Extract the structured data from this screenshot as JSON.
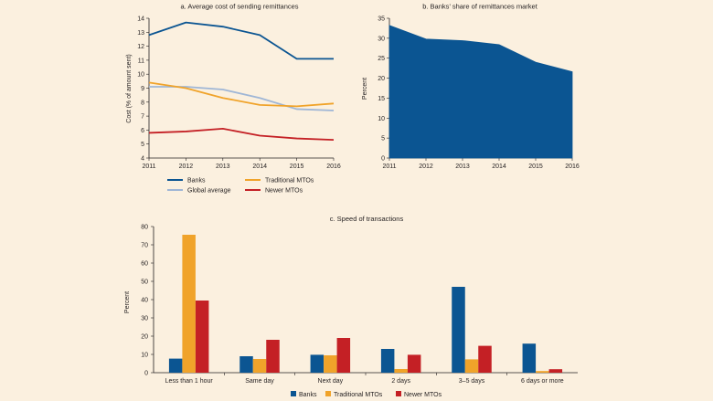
{
  "colors": {
    "background": "#fbf0df",
    "banks": "#0b5592",
    "traditional_mtos": "#f0a32a",
    "global_average": "#9fb6d6",
    "newer_mtos": "#c42025",
    "area": "#0b5592",
    "axis": "#231f20"
  },
  "chart_data": [
    {
      "type": "line",
      "title": "a. Average cost of sending remittances",
      "xlabel": "",
      "ylabel": "Cost (% of amount sent)",
      "x": [
        2011,
        2012,
        2013,
        2014,
        2015,
        2016
      ],
      "ylim": [
        4,
        14
      ],
      "yticks": [
        4,
        5,
        6,
        7,
        8,
        9,
        10,
        11,
        12,
        13,
        14
      ],
      "grid": false,
      "legend": "bottom",
      "series": [
        {
          "name": "Banks",
          "color": "#0b5592",
          "values": [
            12.8,
            13.7,
            13.4,
            12.8,
            11.1,
            11.1
          ]
        },
        {
          "name": "Traditional MTOs",
          "color": "#f0a32a",
          "values": [
            9.4,
            9.0,
            8.3,
            7.8,
            7.7,
            7.9
          ]
        },
        {
          "name": "Global average",
          "color": "#9fb6d6",
          "values": [
            9.1,
            9.1,
            8.9,
            8.3,
            7.5,
            7.4
          ]
        },
        {
          "name": "Newer MTOs",
          "color": "#c42025",
          "values": [
            5.8,
            5.9,
            6.1,
            5.6,
            5.4,
            5.3
          ]
        }
      ]
    },
    {
      "type": "area",
      "title": "b. Banks’ share of remittances market",
      "xlabel": "",
      "ylabel": "Percent",
      "x": [
        2011,
        2012,
        2013,
        2014,
        2015,
        2016
      ],
      "ylim": [
        0,
        35
      ],
      "yticks": [
        0,
        5,
        10,
        15,
        20,
        25,
        30,
        35
      ],
      "grid": false,
      "series": [
        {
          "name": "",
          "color": "#0b5592",
          "values": [
            33.2,
            29.8,
            29.4,
            28.4,
            24.0,
            21.6
          ]
        }
      ]
    },
    {
      "type": "bar",
      "title": "c. Speed of transactions",
      "xlabel": "",
      "ylabel": "Percent",
      "categories": [
        "Less than 1 hour",
        "Same day",
        "Next day",
        "2 days",
        "3–5 days",
        "6 days or more"
      ],
      "ylim": [
        0,
        80
      ],
      "yticks": [
        0,
        10,
        20,
        30,
        40,
        50,
        60,
        70,
        80
      ],
      "grid": false,
      "legend": "bottom",
      "series": [
        {
          "name": "Banks",
          "color": "#0b5592",
          "values": [
            7.7,
            9.0,
            9.8,
            13.0,
            47.0,
            15.9
          ]
        },
        {
          "name": "Traditional MTOs",
          "color": "#f0a32a",
          "values": [
            75.5,
            7.5,
            9.5,
            2.0,
            7.3,
            0.9
          ]
        },
        {
          "name": "Newer MTOs",
          "color": "#c42025",
          "values": [
            39.5,
            18.0,
            19.0,
            9.8,
            14.7,
            1.9
          ]
        }
      ]
    }
  ]
}
